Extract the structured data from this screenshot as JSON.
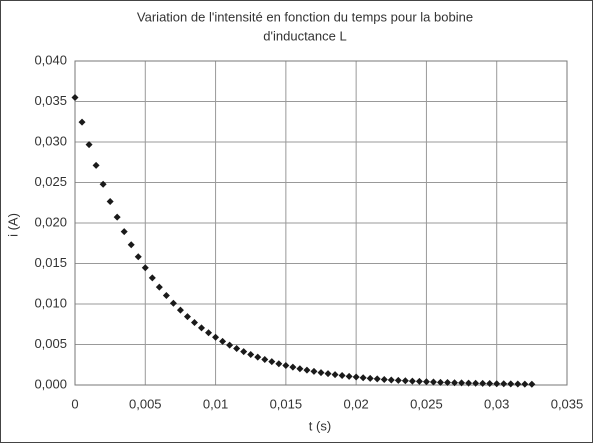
{
  "chart_data": {
    "type": "scatter",
    "title": "Variation de l'intensité en fonction du temps pour la bobine",
    "subtitle": "d'inductance L",
    "x_label": "t (s)",
    "y_label": "i (A)",
    "color": "#1a1a1a",
    "grid": true,
    "x": [
      0,
      0.0005,
      0.001,
      0.0015,
      0.002,
      0.0025,
      0.003,
      0.0035,
      0.004,
      0.0045,
      0.005,
      0.0055,
      0.006,
      0.0065,
      0.007,
      0.0075,
      0.008,
      0.0085,
      0.009,
      0.0095,
      0.01,
      0.0105,
      0.011,
      0.0115,
      0.012,
      0.0125,
      0.013,
      0.0135,
      0.014,
      0.0145,
      0.015,
      0.0155,
      0.016,
      0.0165,
      0.017,
      0.0175,
      0.018,
      0.0185,
      0.019,
      0.0195,
      0.02,
      0.0205,
      0.021,
      0.0215,
      0.022,
      0.0225,
      0.023,
      0.0235,
      0.024,
      0.0245,
      0.025,
      0.0255,
      0.026,
      0.0265,
      0.027,
      0.0275,
      0.028,
      0.0285,
      0.029,
      0.0295,
      0.03,
      0.0305,
      0.031,
      0.0315,
      0.032,
      0.0325
    ],
    "values": [
      0.0355,
      0.03245,
      0.02967,
      0.02712,
      0.02479,
      0.02266,
      0.02072,
      0.01894,
      0.01731,
      0.01583,
      0.01447,
      0.01323,
      0.01209,
      0.01105,
      0.0101,
      0.00924,
      0.00844,
      0.00772,
      0.00706,
      0.00645,
      0.0059,
      0.00539,
      0.00493,
      0.0045,
      0.00412,
      0.00376,
      0.00344,
      0.00315,
      0.00288,
      0.00263,
      0.0024,
      0.0022,
      0.00201,
      0.00184,
      0.00168,
      0.00153,
      0.0014,
      0.00128,
      0.00117,
      0.00107,
      0.00098,
      0.0009,
      0.00082,
      0.00075,
      0.00068,
      0.00062,
      0.00057,
      0.00052,
      0.00048,
      0.00044,
      0.0004,
      0.00037,
      0.00033,
      0.00031,
      0.00028,
      0.00026,
      0.00023,
      0.00021,
      0.0002,
      0.00018,
      0.00016,
      0.00015,
      0.00014,
      0.00012,
      0.00011,
      0.0001
    ],
    "xlim": [
      0,
      0.035
    ],
    "xticks": [
      0,
      {
        "value": 0.005,
        "label": "0,005"
      },
      {
        "value": 0.01,
        "label": "0,01"
      },
      {
        "value": 0.015,
        "label": "0,015"
      },
      {
        "value": 0.02,
        "label": "0,02"
      },
      {
        "value": 0.025,
        "label": "0,025"
      },
      {
        "value": 0.03,
        "label": "0,03"
      },
      {
        "value": 0.035,
        "label": "0,035"
      }
    ],
    "ylim": [
      0,
      0.04
    ],
    "yticks": [
      {
        "value": 0,
        "label": "0,000"
      },
      {
        "value": 0.005,
        "label": "0,005"
      },
      {
        "value": 0.01,
        "label": "0,010"
      },
      {
        "value": 0.015,
        "label": "0,015"
      },
      {
        "value": 0.02,
        "label": "0,020"
      },
      {
        "value": 0.025,
        "label": "0,025"
      },
      {
        "value": 0.03,
        "label": "0,030"
      },
      {
        "value": 0.035,
        "label": "0,035"
      },
      {
        "value": 0.04,
        "label": "0,040"
      }
    ]
  }
}
